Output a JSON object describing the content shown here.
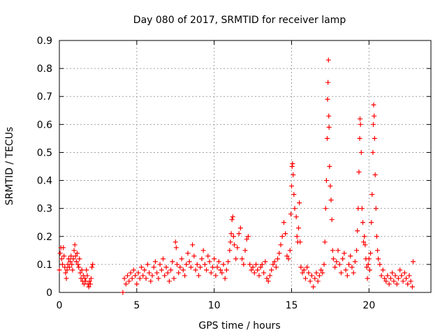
{
  "chart_data": {
    "type": "scatter",
    "title": "Day 080 of 2017, SRMTID for receiver lamp",
    "xlabel": "GPS time / hours",
    "ylabel": "SRMTID / TECUs",
    "xlim": [
      0,
      24
    ],
    "ylim": [
      0,
      0.9
    ],
    "x_ticks": [
      0,
      5,
      10,
      15,
      20
    ],
    "x_tick_labels": [
      "0",
      "5",
      "10",
      "15",
      "20"
    ],
    "y_ticks": [
      0,
      0.1,
      0.2,
      0.3,
      0.4,
      0.5,
      0.6,
      0.7,
      0.8,
      0.9
    ],
    "y_tick_labels": [
      "0",
      "0.1",
      "0.2",
      "0.3",
      "0.4",
      "0.5",
      "0.6",
      "0.7",
      "0.8",
      "0.9"
    ],
    "grid": true,
    "marker": "+",
    "color": "#ff0000",
    "series": [
      {
        "name": "SRMTID",
        "points": [
          [
            0.0,
            0.08
          ],
          [
            0.05,
            0.14
          ],
          [
            0.1,
            0.16
          ],
          [
            0.15,
            0.12
          ],
          [
            0.2,
            0.1
          ],
          [
            0.25,
            0.16
          ],
          [
            0.3,
            0.13
          ],
          [
            0.35,
            0.09
          ],
          [
            0.4,
            0.07
          ],
          [
            0.45,
            0.05
          ],
          [
            0.5,
            0.08
          ],
          [
            0.55,
            0.1
          ],
          [
            0.6,
            0.12
          ],
          [
            0.65,
            0.09
          ],
          [
            0.7,
            0.11
          ],
          [
            0.75,
            0.13
          ],
          [
            0.8,
            0.1
          ],
          [
            0.85,
            0.08
          ],
          [
            0.9,
            0.12
          ],
          [
            0.95,
            0.15
          ],
          [
            1.0,
            0.17
          ],
          [
            1.05,
            0.13
          ],
          [
            1.1,
            0.11
          ],
          [
            1.15,
            0.14
          ],
          [
            1.2,
            0.1
          ],
          [
            1.25,
            0.09
          ],
          [
            1.3,
            0.12
          ],
          [
            1.35,
            0.07
          ],
          [
            1.4,
            0.05
          ],
          [
            1.45,
            0.08
          ],
          [
            1.5,
            0.04
          ],
          [
            1.55,
            0.06
          ],
          [
            1.6,
            0.03
          ],
          [
            1.65,
            0.05
          ],
          [
            1.7,
            0.04
          ],
          [
            1.75,
            0.08
          ],
          [
            1.8,
            0.06
          ],
          [
            1.85,
            0.03
          ],
          [
            1.9,
            0.02
          ],
          [
            1.95,
            0.04
          ],
          [
            2.0,
            0.03
          ],
          [
            2.05,
            0.05
          ],
          [
            2.1,
            0.09
          ],
          [
            2.15,
            0.1
          ],
          [
            4.1,
            0.0
          ],
          [
            4.2,
            0.05
          ],
          [
            4.3,
            0.03
          ],
          [
            4.4,
            0.06
          ],
          [
            4.5,
            0.04
          ],
          [
            4.6,
            0.07
          ],
          [
            4.7,
            0.05
          ],
          [
            4.8,
            0.08
          ],
          [
            4.9,
            0.06
          ],
          [
            5.0,
            0.03
          ],
          [
            5.1,
            0.07
          ],
          [
            5.2,
            0.05
          ],
          [
            5.3,
            0.09
          ],
          [
            5.4,
            0.06
          ],
          [
            5.5,
            0.08
          ],
          [
            5.6,
            0.05
          ],
          [
            5.7,
            0.1
          ],
          [
            5.8,
            0.07
          ],
          [
            5.9,
            0.04
          ],
          [
            6.0,
            0.06
          ],
          [
            6.1,
            0.09
          ],
          [
            6.2,
            0.11
          ],
          [
            6.3,
            0.07
          ],
          [
            6.4,
            0.05
          ],
          [
            6.5,
            0.1
          ],
          [
            6.6,
            0.08
          ],
          [
            6.7,
            0.12
          ],
          [
            6.8,
            0.06
          ],
          [
            6.9,
            0.09
          ],
          [
            7.0,
            0.07
          ],
          [
            7.1,
            0.04
          ],
          [
            7.2,
            0.08
          ],
          [
            7.3,
            0.11
          ],
          [
            7.4,
            0.05
          ],
          [
            7.5,
            0.18
          ],
          [
            7.55,
            0.16
          ],
          [
            7.6,
            0.1
          ],
          [
            7.7,
            0.07
          ],
          [
            7.8,
            0.09
          ],
          [
            7.9,
            0.12
          ],
          [
            8.0,
            0.08
          ],
          [
            8.1,
            0.06
          ],
          [
            8.2,
            0.1
          ],
          [
            8.3,
            0.14
          ],
          [
            8.4,
            0.11
          ],
          [
            8.5,
            0.09
          ],
          [
            8.6,
            0.17
          ],
          [
            8.7,
            0.13
          ],
          [
            8.8,
            0.08
          ],
          [
            8.9,
            0.1
          ],
          [
            9.0,
            0.06
          ],
          [
            9.1,
            0.09
          ],
          [
            9.2,
            0.12
          ],
          [
            9.3,
            0.15
          ],
          [
            9.4,
            0.1
          ],
          [
            9.5,
            0.08
          ],
          [
            9.6,
            0.13
          ],
          [
            9.7,
            0.11
          ],
          [
            9.8,
            0.07
          ],
          [
            9.9,
            0.09
          ],
          [
            10.0,
            0.12
          ],
          [
            10.1,
            0.06
          ],
          [
            10.2,
            0.09
          ],
          [
            10.3,
            0.11
          ],
          [
            10.4,
            0.08
          ],
          [
            10.5,
            0.07
          ],
          [
            10.6,
            0.1
          ],
          [
            10.7,
            0.05
          ],
          [
            10.8,
            0.08
          ],
          [
            10.9,
            0.11
          ],
          [
            11.0,
            0.15
          ],
          [
            11.05,
            0.18
          ],
          [
            11.1,
            0.21
          ],
          [
            11.15,
            0.26
          ],
          [
            11.2,
            0.27
          ],
          [
            11.25,
            0.2
          ],
          [
            11.3,
            0.17
          ],
          [
            11.4,
            0.12
          ],
          [
            11.5,
            0.16
          ],
          [
            11.6,
            0.21
          ],
          [
            11.7,
            0.23
          ],
          [
            11.8,
            0.12
          ],
          [
            11.9,
            0.1
          ],
          [
            12.0,
            0.15
          ],
          [
            12.1,
            0.19
          ],
          [
            12.2,
            0.2
          ],
          [
            12.3,
            0.1
          ],
          [
            12.4,
            0.08
          ],
          [
            12.5,
            0.09
          ],
          [
            12.6,
            0.07
          ],
          [
            12.7,
            0.1
          ],
          [
            12.8,
            0.08
          ],
          [
            12.9,
            0.06
          ],
          [
            13.0,
            0.09
          ],
          [
            13.1,
            0.1
          ],
          [
            13.2,
            0.07
          ],
          [
            13.3,
            0.11
          ],
          [
            13.4,
            0.05
          ],
          [
            13.5,
            0.04
          ],
          [
            13.6,
            0.06
          ],
          [
            13.7,
            0.08
          ],
          [
            13.8,
            0.1
          ],
          [
            13.9,
            0.11
          ],
          [
            14.0,
            0.09
          ],
          [
            14.1,
            0.12
          ],
          [
            14.2,
            0.14
          ],
          [
            14.3,
            0.17
          ],
          [
            14.4,
            0.2
          ],
          [
            14.5,
            0.25
          ],
          [
            14.6,
            0.21
          ],
          [
            14.7,
            0.13
          ],
          [
            14.8,
            0.12
          ],
          [
            14.9,
            0.15
          ],
          [
            14.95,
            0.28
          ],
          [
            15.0,
            0.38
          ],
          [
            15.03,
            0.45
          ],
          [
            15.06,
            0.46
          ],
          [
            15.1,
            0.42
          ],
          [
            15.15,
            0.35
          ],
          [
            15.2,
            0.3
          ],
          [
            15.3,
            0.27
          ],
          [
            15.35,
            0.2
          ],
          [
            15.4,
            0.18
          ],
          [
            15.45,
            0.23
          ],
          [
            15.5,
            0.32
          ],
          [
            15.55,
            0.18
          ],
          [
            15.6,
            0.09
          ],
          [
            15.7,
            0.07
          ],
          [
            15.8,
            0.08
          ],
          [
            15.9,
            0.05
          ],
          [
            16.0,
            0.09
          ],
          [
            16.1,
            0.07
          ],
          [
            16.2,
            0.04
          ],
          [
            16.3,
            0.06
          ],
          [
            16.4,
            0.02
          ],
          [
            16.5,
            0.05
          ],
          [
            16.6,
            0.07
          ],
          [
            16.7,
            0.04
          ],
          [
            16.8,
            0.06
          ],
          [
            16.9,
            0.08
          ],
          [
            17.0,
            0.07
          ],
          [
            17.1,
            0.1
          ],
          [
            17.15,
            0.18
          ],
          [
            17.2,
            0.3
          ],
          [
            17.25,
            0.4
          ],
          [
            17.3,
            0.55
          ],
          [
            17.32,
            0.69
          ],
          [
            17.35,
            0.75
          ],
          [
            17.38,
            0.83
          ],
          [
            17.4,
            0.63
          ],
          [
            17.42,
            0.59
          ],
          [
            17.45,
            0.45
          ],
          [
            17.5,
            0.38
          ],
          [
            17.55,
            0.33
          ],
          [
            17.6,
            0.26
          ],
          [
            17.65,
            0.15
          ],
          [
            17.7,
            0.12
          ],
          [
            17.8,
            0.09
          ],
          [
            17.9,
            0.11
          ],
          [
            18.0,
            0.15
          ],
          [
            18.1,
            0.1
          ],
          [
            18.2,
            0.07
          ],
          [
            18.3,
            0.12
          ],
          [
            18.4,
            0.14
          ],
          [
            18.5,
            0.08
          ],
          [
            18.6,
            0.06
          ],
          [
            18.7,
            0.1
          ],
          [
            18.8,
            0.13
          ],
          [
            18.9,
            0.09
          ],
          [
            19.0,
            0.07
          ],
          [
            19.1,
            0.11
          ],
          [
            19.2,
            0.15
          ],
          [
            19.25,
            0.22
          ],
          [
            19.3,
            0.3
          ],
          [
            19.35,
            0.43
          ],
          [
            19.4,
            0.55
          ],
          [
            19.42,
            0.62
          ],
          [
            19.45,
            0.6
          ],
          [
            19.5,
            0.5
          ],
          [
            19.55,
            0.3
          ],
          [
            19.6,
            0.25
          ],
          [
            19.65,
            0.18
          ],
          [
            19.7,
            0.2
          ],
          [
            19.75,
            0.17
          ],
          [
            19.8,
            0.12
          ],
          [
            19.85,
            0.09
          ],
          [
            19.9,
            0.05
          ],
          [
            19.95,
            0.1
          ],
          [
            20.0,
            0.12
          ],
          [
            20.05,
            0.08
          ],
          [
            20.1,
            0.14
          ],
          [
            20.15,
            0.25
          ],
          [
            20.2,
            0.35
          ],
          [
            20.25,
            0.5
          ],
          [
            20.28,
            0.6
          ],
          [
            20.3,
            0.67
          ],
          [
            20.33,
            0.63
          ],
          [
            20.36,
            0.55
          ],
          [
            20.4,
            0.42
          ],
          [
            20.45,
            0.3
          ],
          [
            20.5,
            0.2
          ],
          [
            20.55,
            0.15
          ],
          [
            20.6,
            0.12
          ],
          [
            20.7,
            0.1
          ],
          [
            20.8,
            0.06
          ],
          [
            20.9,
            0.08
          ],
          [
            21.0,
            0.05
          ],
          [
            21.1,
            0.04
          ],
          [
            21.2,
            0.06
          ],
          [
            21.3,
            0.03
          ],
          [
            21.4,
            0.05
          ],
          [
            21.5,
            0.07
          ],
          [
            21.6,
            0.04
          ],
          [
            21.7,
            0.06
          ],
          [
            21.8,
            0.03
          ],
          [
            21.9,
            0.05
          ],
          [
            22.0,
            0.08
          ],
          [
            22.1,
            0.06
          ],
          [
            22.2,
            0.04
          ],
          [
            22.3,
            0.07
          ],
          [
            22.4,
            0.05
          ],
          [
            22.5,
            0.03
          ],
          [
            22.6,
            0.06
          ],
          [
            22.7,
            0.04
          ],
          [
            22.8,
            0.02
          ],
          [
            22.85,
            0.11
          ]
        ]
      }
    ]
  }
}
